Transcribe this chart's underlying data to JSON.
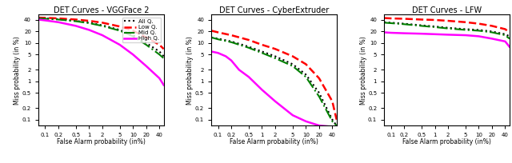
{
  "titles": [
    "DET Curves - VGGFace 2",
    "DET Curves - CyberExtruder",
    "DET Curves - LFW"
  ],
  "xlabel": "False Alarm probability (in%)",
  "ylabel": "Miss probability (in %)",
  "legend_labels": [
    "All Q.",
    "Low Q.",
    "Mid Q.",
    "High Q."
  ],
  "line_styles": [
    {
      "color": "black",
      "linestyle": ":",
      "linewidth": 1.5
    },
    {
      "color": "red",
      "linestyle": "--",
      "linewidth": 1.8
    },
    {
      "color": "green",
      "linestyle": "-.",
      "linewidth": 1.5
    },
    {
      "color": "magenta",
      "linestyle": "-",
      "linewidth": 1.8
    }
  ],
  "xticks": [
    0.1,
    0.2,
    0.5,
    1,
    2,
    5,
    10,
    20,
    40
  ],
  "yticks": [
    0.1,
    0.2,
    0.5,
    1,
    2,
    5,
    10,
    20,
    40
  ],
  "xlim": [
    0.07,
    50
  ],
  "ylim_vgg": [
    0.07,
    55
  ],
  "ylim_cyber": [
    0.07,
    55
  ],
  "ylim_lfw": [
    0.07,
    55
  ],
  "curves": {
    "vgg": {
      "all": {
        "x": [
          0.07,
          0.1,
          0.2,
          0.5,
          1,
          2,
          5,
          10,
          20,
          40,
          50
        ],
        "y": [
          45,
          44,
          42,
          38,
          34,
          29,
          22,
          16,
          10,
          6,
          4.5
        ]
      },
      "low": {
        "x": [
          0.07,
          0.1,
          0.2,
          0.5,
          1,
          2,
          5,
          10,
          20,
          40,
          50
        ],
        "y": [
          46,
          45.5,
          44,
          41,
          38,
          34,
          27,
          21,
          14,
          9,
          7
        ]
      },
      "mid": {
        "x": [
          0.07,
          0.1,
          0.2,
          0.5,
          1,
          2,
          5,
          10,
          20,
          40,
          50
        ],
        "y": [
          44,
          43,
          41,
          37,
          33,
          28,
          21,
          15,
          9,
          5,
          4
        ]
      },
      "high": {
        "x": [
          0.07,
          0.1,
          0.2,
          0.5,
          1,
          2,
          5,
          10,
          20,
          40,
          50
        ],
        "y": [
          41,
          39,
          35,
          28,
          22,
          16,
          9,
          5,
          2.5,
          1.2,
          0.8
        ]
      }
    },
    "cyber": {
      "all": {
        "x": [
          0.07,
          0.1,
          0.2,
          0.5,
          1,
          2,
          5,
          10,
          20,
          40,
          50
        ],
        "y": [
          14,
          13,
          11,
          8,
          6,
          4.5,
          2.8,
          1.5,
          0.5,
          0.1,
          0.07
        ]
      },
      "low": {
        "x": [
          0.07,
          0.1,
          0.2,
          0.5,
          1,
          2,
          5,
          10,
          20,
          40,
          50
        ],
        "y": [
          21,
          19,
          16,
          12,
          9,
          7,
          4.5,
          2.8,
          1.2,
          0.3,
          0.1
        ]
      },
      "mid": {
        "x": [
          0.07,
          0.1,
          0.2,
          0.5,
          1,
          2,
          5,
          10,
          20,
          40,
          50
        ],
        "y": [
          14,
          12.5,
          10.5,
          7.5,
          5.5,
          4,
          2.5,
          1.3,
          0.4,
          0.09,
          0.07
        ]
      },
      "high": {
        "x": [
          0.07,
          0.1,
          0.15,
          0.2,
          0.3,
          0.5,
          1,
          2,
          5,
          10,
          20,
          40,
          50
        ],
        "y": [
          6,
          5.5,
          4.5,
          3.5,
          2,
          1.3,
          0.6,
          0.3,
          0.13,
          0.09,
          0.07,
          0.065,
          0.065
        ]
      }
    },
    "lfw": {
      "all": {
        "x": [
          0.07,
          0.1,
          0.2,
          0.5,
          1,
          2,
          5,
          10,
          20,
          40,
          50
        ],
        "y": [
          35,
          34,
          32,
          29,
          27,
          25,
          23,
          22,
          20,
          17,
          15
        ]
      },
      "low": {
        "x": [
          0.07,
          0.1,
          0.2,
          0.5,
          1,
          2,
          5,
          10,
          20,
          40,
          50
        ],
        "y": [
          45,
          44,
          43,
          41,
          40,
          38,
          35,
          32,
          28,
          23,
          19
        ]
      },
      "mid": {
        "x": [
          0.07,
          0.1,
          0.2,
          0.5,
          1,
          2,
          5,
          10,
          20,
          40,
          50
        ],
        "y": [
          34,
          33,
          31,
          28,
          26,
          24,
          22,
          21,
          19,
          16,
          13
        ]
      },
      "high": {
        "x": [
          0.07,
          0.1,
          0.2,
          0.5,
          1,
          2,
          5,
          10,
          20,
          40,
          50
        ],
        "y": [
          19,
          18.5,
          18,
          17.5,
          17,
          16.5,
          16,
          15,
          13,
          11,
          8
        ]
      }
    }
  }
}
